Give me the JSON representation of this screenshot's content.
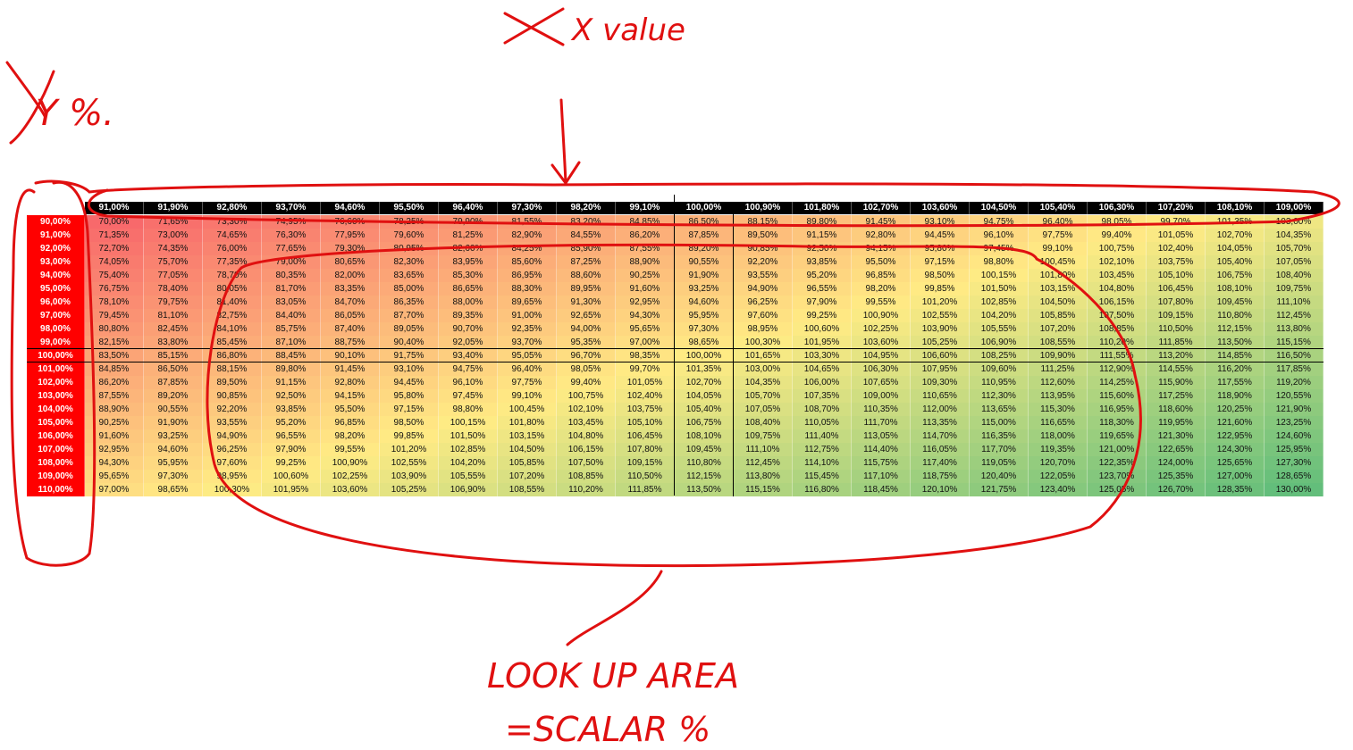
{
  "annotations": {
    "x_label": "X value",
    "y_label": "Y %.",
    "area_label": "LOOK UP AREA",
    "formula_label": "=SCALAR %"
  },
  "table": {
    "columns": [
      "91,00%",
      "91,90%",
      "92,80%",
      "93,70%",
      "94,60%",
      "95,50%",
      "96,40%",
      "97,30%",
      "98,20%",
      "99,10%",
      "100,00%",
      "100,90%",
      "101,80%",
      "102,70%",
      "103,60%",
      "104,50%",
      "105,40%",
      "106,30%",
      "107,20%",
      "108,10%",
      "109,00%"
    ],
    "row_labels": [
      "90,00%",
      "91,00%",
      "92,00%",
      "93,00%",
      "94,00%",
      "95,00%",
      "96,00%",
      "97,00%",
      "98,00%",
      "99,00%",
      "100,00%",
      "101,00%",
      "102,00%",
      "103,00%",
      "104,00%",
      "105,00%",
      "106,00%",
      "107,00%",
      "108,00%",
      "109,00%",
      "110,00%"
    ],
    "rows": [
      [
        "70,00%",
        "71,65%",
        "73,30%",
        "74,95%",
        "76,60%",
        "78,25%",
        "79,90%",
        "81,55%",
        "83,20%",
        "84,85%",
        "86,50%",
        "88,15%",
        "89,80%",
        "91,45%",
        "93,10%",
        "94,75%",
        "96,40%",
        "98,05%",
        "99,70%",
        "101,35%",
        "103,00%"
      ],
      [
        "71,35%",
        "73,00%",
        "74,65%",
        "76,30%",
        "77,95%",
        "79,60%",
        "81,25%",
        "82,90%",
        "84,55%",
        "86,20%",
        "87,85%",
        "89,50%",
        "91,15%",
        "92,80%",
        "94,45%",
        "96,10%",
        "97,75%",
        "99,40%",
        "101,05%",
        "102,70%",
        "104,35%"
      ],
      [
        "72,70%",
        "74,35%",
        "76,00%",
        "77,65%",
        "79,30%",
        "80,95%",
        "82,60%",
        "84,25%",
        "85,90%",
        "87,55%",
        "89,20%",
        "90,85%",
        "92,50%",
        "94,15%",
        "95,80%",
        "97,45%",
        "99,10%",
        "100,75%",
        "102,40%",
        "104,05%",
        "105,70%"
      ],
      [
        "74,05%",
        "75,70%",
        "77,35%",
        "79,00%",
        "80,65%",
        "82,30%",
        "83,95%",
        "85,60%",
        "87,25%",
        "88,90%",
        "90,55%",
        "92,20%",
        "93,85%",
        "95,50%",
        "97,15%",
        "98,80%",
        "100,45%",
        "102,10%",
        "103,75%",
        "105,40%",
        "107,05%"
      ],
      [
        "75,40%",
        "77,05%",
        "78,70%",
        "80,35%",
        "82,00%",
        "83,65%",
        "85,30%",
        "86,95%",
        "88,60%",
        "90,25%",
        "91,90%",
        "93,55%",
        "95,20%",
        "96,85%",
        "98,50%",
        "100,15%",
        "101,80%",
        "103,45%",
        "105,10%",
        "106,75%",
        "108,40%"
      ],
      [
        "76,75%",
        "78,40%",
        "80,05%",
        "81,70%",
        "83,35%",
        "85,00%",
        "86,65%",
        "88,30%",
        "89,95%",
        "91,60%",
        "93,25%",
        "94,90%",
        "96,55%",
        "98,20%",
        "99,85%",
        "101,50%",
        "103,15%",
        "104,80%",
        "106,45%",
        "108,10%",
        "109,75%"
      ],
      [
        "78,10%",
        "79,75%",
        "81,40%",
        "83,05%",
        "84,70%",
        "86,35%",
        "88,00%",
        "89,65%",
        "91,30%",
        "92,95%",
        "94,60%",
        "96,25%",
        "97,90%",
        "99,55%",
        "101,20%",
        "102,85%",
        "104,50%",
        "106,15%",
        "107,80%",
        "109,45%",
        "111,10%"
      ],
      [
        "79,45%",
        "81,10%",
        "82,75%",
        "84,40%",
        "86,05%",
        "87,70%",
        "89,35%",
        "91,00%",
        "92,65%",
        "94,30%",
        "95,95%",
        "97,60%",
        "99,25%",
        "100,90%",
        "102,55%",
        "104,20%",
        "105,85%",
        "107,50%",
        "109,15%",
        "110,80%",
        "112,45%"
      ],
      [
        "80,80%",
        "82,45%",
        "84,10%",
        "85,75%",
        "87,40%",
        "89,05%",
        "90,70%",
        "92,35%",
        "94,00%",
        "95,65%",
        "97,30%",
        "98,95%",
        "100,60%",
        "102,25%",
        "103,90%",
        "105,55%",
        "107,20%",
        "108,85%",
        "110,50%",
        "112,15%",
        "113,80%"
      ],
      [
        "82,15%",
        "83,80%",
        "85,45%",
        "87,10%",
        "88,75%",
        "90,40%",
        "92,05%",
        "93,70%",
        "95,35%",
        "97,00%",
        "98,65%",
        "100,30%",
        "101,95%",
        "103,60%",
        "105,25%",
        "106,90%",
        "108,55%",
        "110,20%",
        "111,85%",
        "113,50%",
        "115,15%"
      ],
      [
        "83,50%",
        "85,15%",
        "86,80%",
        "88,45%",
        "90,10%",
        "91,75%",
        "93,40%",
        "95,05%",
        "96,70%",
        "98,35%",
        "100,00%",
        "101,65%",
        "103,30%",
        "104,95%",
        "106,60%",
        "108,25%",
        "109,90%",
        "111,55%",
        "113,20%",
        "114,85%",
        "116,50%"
      ],
      [
        "84,85%",
        "86,50%",
        "88,15%",
        "89,80%",
        "91,45%",
        "93,10%",
        "94,75%",
        "96,40%",
        "98,05%",
        "99,70%",
        "101,35%",
        "103,00%",
        "104,65%",
        "106,30%",
        "107,95%",
        "109,60%",
        "111,25%",
        "112,90%",
        "114,55%",
        "116,20%",
        "117,85%"
      ],
      [
        "86,20%",
        "87,85%",
        "89,50%",
        "91,15%",
        "92,80%",
        "94,45%",
        "96,10%",
        "97,75%",
        "99,40%",
        "101,05%",
        "102,70%",
        "104,35%",
        "106,00%",
        "107,65%",
        "109,30%",
        "110,95%",
        "112,60%",
        "114,25%",
        "115,90%",
        "117,55%",
        "119,20%"
      ],
      [
        "87,55%",
        "89,20%",
        "90,85%",
        "92,50%",
        "94,15%",
        "95,80%",
        "97,45%",
        "99,10%",
        "100,75%",
        "102,40%",
        "104,05%",
        "105,70%",
        "107,35%",
        "109,00%",
        "110,65%",
        "112,30%",
        "113,95%",
        "115,60%",
        "117,25%",
        "118,90%",
        "120,55%"
      ],
      [
        "88,90%",
        "90,55%",
        "92,20%",
        "93,85%",
        "95,50%",
        "97,15%",
        "98,80%",
        "100,45%",
        "102,10%",
        "103,75%",
        "105,40%",
        "107,05%",
        "108,70%",
        "110,35%",
        "112,00%",
        "113,65%",
        "115,30%",
        "116,95%",
        "118,60%",
        "120,25%",
        "121,90%"
      ],
      [
        "90,25%",
        "91,90%",
        "93,55%",
        "95,20%",
        "96,85%",
        "98,50%",
        "100,15%",
        "101,80%",
        "103,45%",
        "105,10%",
        "106,75%",
        "108,40%",
        "110,05%",
        "111,70%",
        "113,35%",
        "115,00%",
        "116,65%",
        "118,30%",
        "119,95%",
        "121,60%",
        "123,25%"
      ],
      [
        "91,60%",
        "93,25%",
        "94,90%",
        "96,55%",
        "98,20%",
        "99,85%",
        "101,50%",
        "103,15%",
        "104,80%",
        "106,45%",
        "108,10%",
        "109,75%",
        "111,40%",
        "113,05%",
        "114,70%",
        "116,35%",
        "118,00%",
        "119,65%",
        "121,30%",
        "122,95%",
        "124,60%"
      ],
      [
        "92,95%",
        "94,60%",
        "96,25%",
        "97,90%",
        "99,55%",
        "101,20%",
        "102,85%",
        "104,50%",
        "106,15%",
        "107,80%",
        "109,45%",
        "111,10%",
        "112,75%",
        "114,40%",
        "116,05%",
        "117,70%",
        "119,35%",
        "121,00%",
        "122,65%",
        "124,30%",
        "125,95%"
      ],
      [
        "94,30%",
        "95,95%",
        "97,60%",
        "99,25%",
        "100,90%",
        "102,55%",
        "104,20%",
        "105,85%",
        "107,50%",
        "109,15%",
        "110,80%",
        "112,45%",
        "114,10%",
        "115,75%",
        "117,40%",
        "119,05%",
        "120,70%",
        "122,35%",
        "124,00%",
        "125,65%",
        "127,30%"
      ],
      [
        "95,65%",
        "97,30%",
        "98,95%",
        "100,60%",
        "102,25%",
        "103,90%",
        "105,55%",
        "107,20%",
        "108,85%",
        "110,50%",
        "112,15%",
        "113,80%",
        "115,45%",
        "117,10%",
        "118,75%",
        "120,40%",
        "122,05%",
        "123,70%",
        "125,35%",
        "127,00%",
        "128,65%"
      ],
      [
        "97,00%",
        "98,65%",
        "100,30%",
        "101,95%",
        "103,60%",
        "105,25%",
        "106,90%",
        "108,55%",
        "110,20%",
        "111,85%",
        "113,50%",
        "115,15%",
        "116,80%",
        "118,45%",
        "120,10%",
        "121,75%",
        "123,40%",
        "125,05%",
        "126,70%",
        "128,35%",
        "130,00%"
      ]
    ]
  }
}
